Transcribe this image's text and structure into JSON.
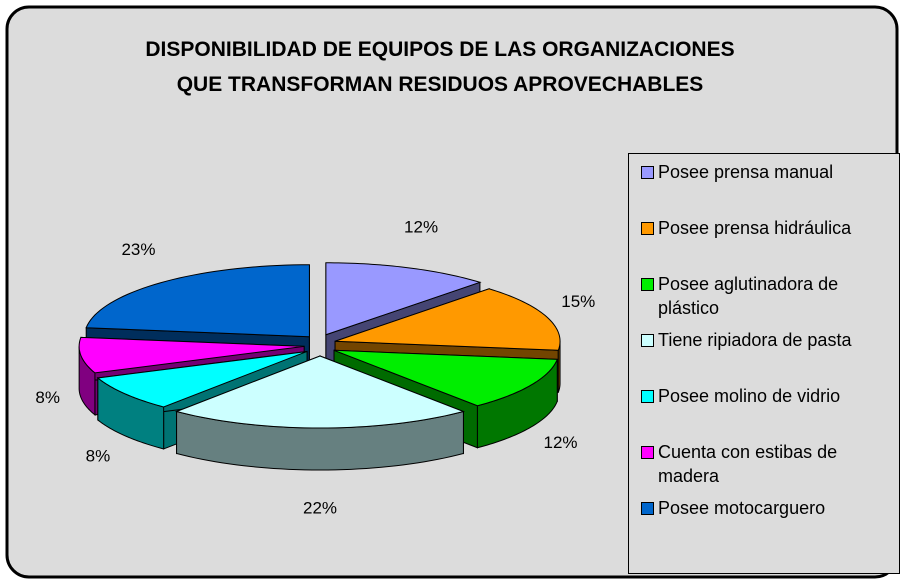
{
  "chart_data": {
    "type": "pie",
    "title": "DISPONIBILIDAD DE EQUIPOS DE LAS ORGANIZACIONES QUE TRANSFORMAN RESIDUOS APROVECHABLES",
    "categories": [
      "Posee prensa manual",
      "Posee prensa hidráulica",
      "Posee aglutinadora de plástico",
      "Tiene ripiadora de pasta",
      "Posee molino de vidrio",
      "Cuenta con estibas de madera",
      "Posee motocarguero"
    ],
    "values": [
      12,
      15,
      12,
      22,
      8,
      8,
      23
    ],
    "value_labels": [
      "12%",
      "15%",
      "12%",
      "22%",
      "8%",
      "8%",
      "23%"
    ],
    "colors": [
      "#9999ff",
      "#ff9900",
      "#00ee00",
      "#ccffff",
      "#00ffff",
      "#ff00ff",
      "#0066cc"
    ],
    "legend": "right"
  }
}
